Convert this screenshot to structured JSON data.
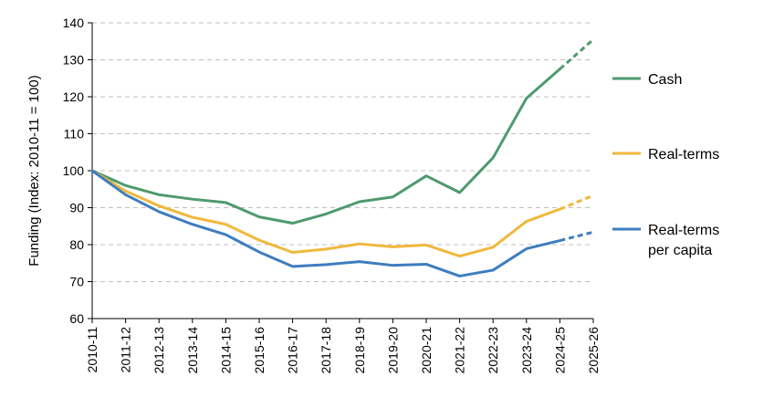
{
  "chart_data": {
    "type": "line",
    "title": "",
    "xlabel": "",
    "ylabel": "Funding (Index: 2010-11 = 100)",
    "ylim": [
      60,
      140
    ],
    "yticks": [
      60,
      70,
      80,
      90,
      100,
      110,
      120,
      130,
      140
    ],
    "grid": true,
    "legend_placement": "right",
    "categories": [
      "2010-11",
      "2011-12",
      "2012-13",
      "2013-14",
      "2014-15",
      "2015-16",
      "2016-17",
      "2017-18",
      "2018-19",
      "2019-20",
      "2020-21",
      "2021-22",
      "2022-23",
      "2023-24",
      "2024-25",
      "2025-26"
    ],
    "projection_from_index": 14,
    "series": [
      {
        "name": "Cash",
        "color": "#4e9a6f",
        "values": [
          100,
          96,
          93.5,
          92.3,
          91.4,
          87.5,
          85.8,
          88.3,
          91.6,
          92.9,
          98.6,
          94.1,
          103.5,
          119.6,
          127.5,
          135.5
        ]
      },
      {
        "name": "Real-terms",
        "color": "#f0b83c",
        "values": [
          100,
          94.5,
          90.5,
          87.4,
          85.5,
          81.2,
          77.9,
          78.8,
          80.2,
          79.4,
          79.9,
          76.9,
          79.3,
          86.3,
          89.6,
          93.3
        ]
      },
      {
        "name_lines": [
          "Real-terms",
          "per capita"
        ],
        "color": "#3f7dbf",
        "values": [
          100,
          93.5,
          88.9,
          85.5,
          82.7,
          78.0,
          74.1,
          74.6,
          75.4,
          74.4,
          74.7,
          71.5,
          73.1,
          78.9,
          81.1,
          83.4
        ]
      }
    ]
  }
}
